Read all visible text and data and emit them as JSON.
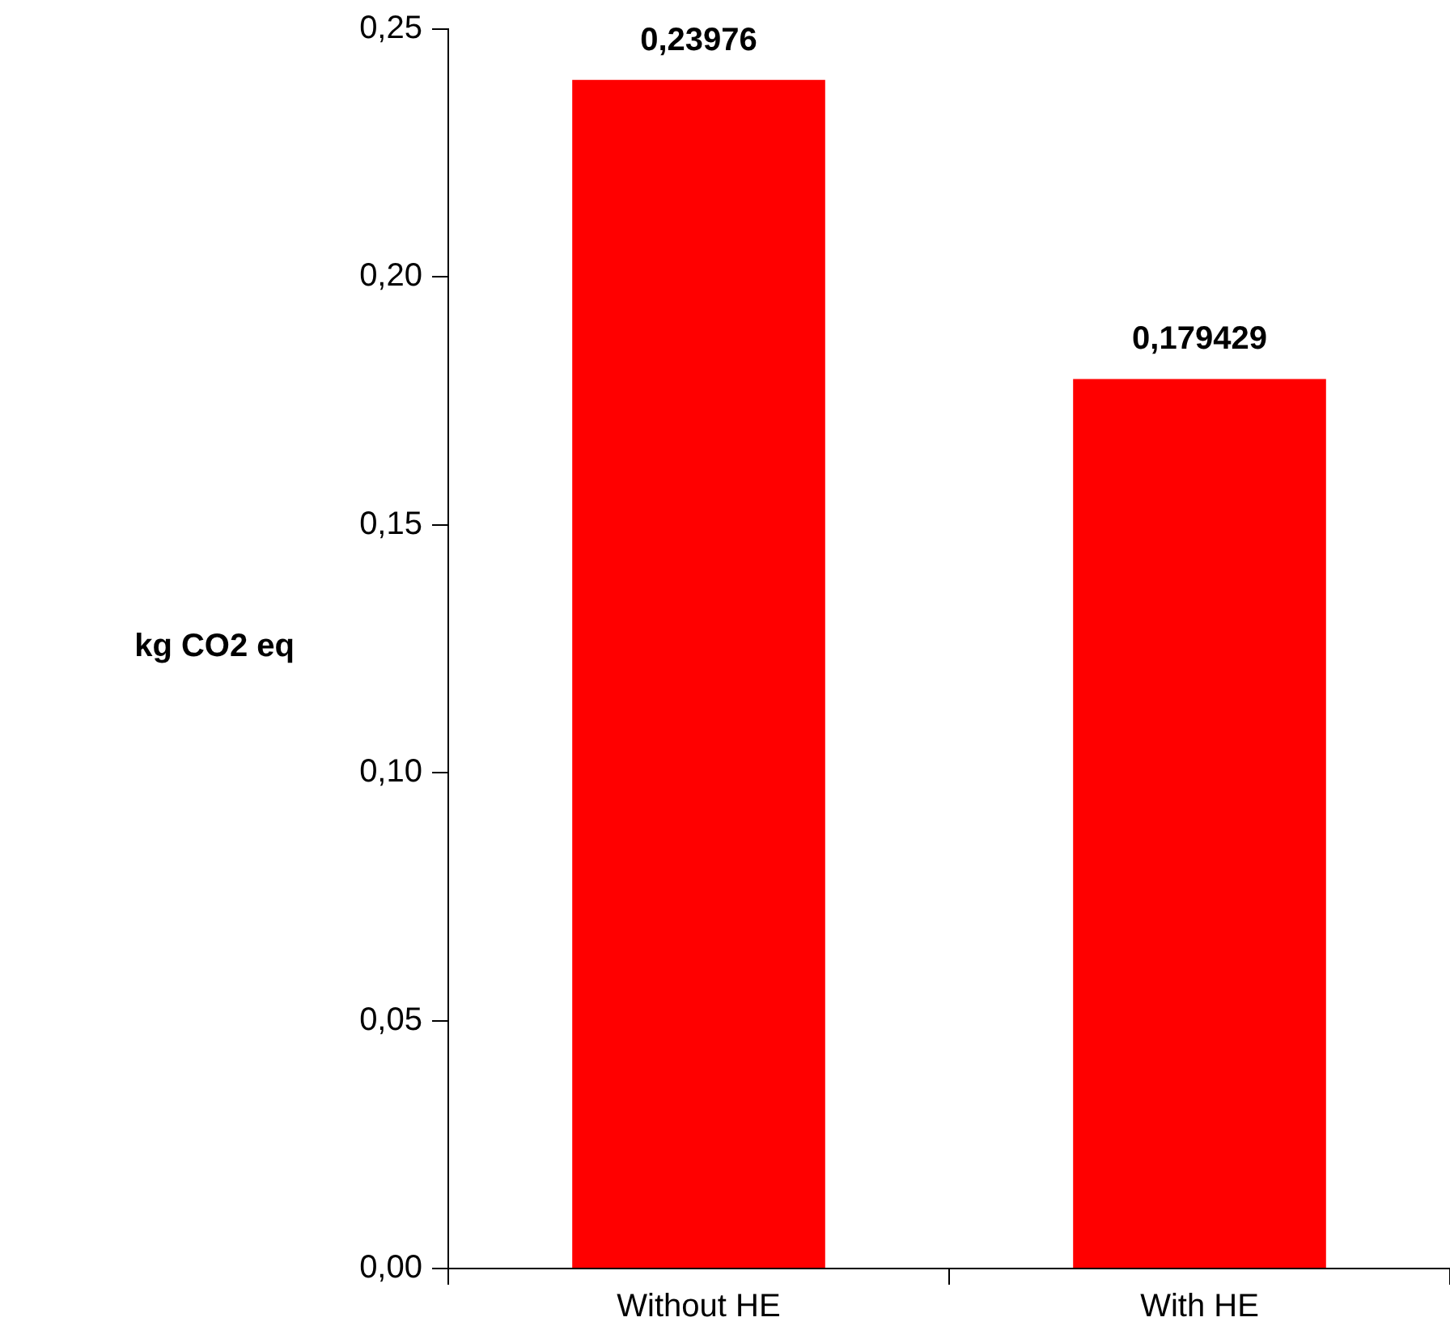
{
  "chart_data": {
    "type": "bar",
    "ylabel": "kg CO2 eq",
    "categories": [
      "Without HE",
      "With HE"
    ],
    "values": [
      0.23976,
      0.179429
    ],
    "color": "#ff0000",
    "value_labels": [
      "0,23976",
      "0,179429"
    ],
    "ylim": [
      0,
      0.25
    ],
    "yticks": [
      {
        "value": 0,
        "label": "0,00"
      },
      {
        "value": 0.05,
        "label": "0,05"
      },
      {
        "value": 0.1,
        "label": "0,10"
      },
      {
        "value": 0.15,
        "label": "0,15"
      },
      {
        "value": 0.2,
        "label": "0,20"
      },
      {
        "value": 0.25,
        "label": "0,25"
      }
    ]
  }
}
